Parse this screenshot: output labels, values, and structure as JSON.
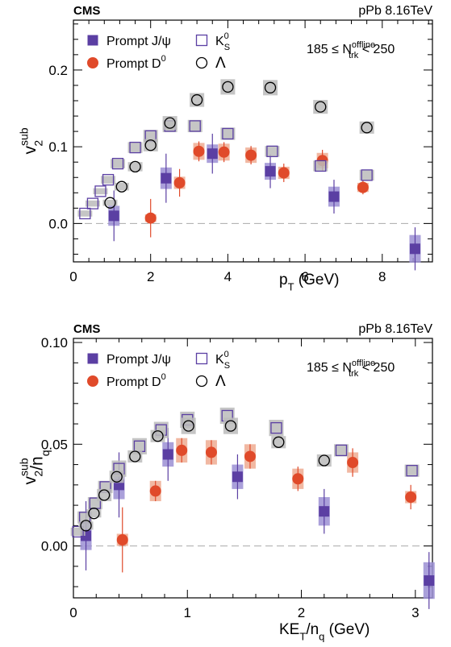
{
  "chart_data": [
    {
      "type": "scatter",
      "experiment": "CMS",
      "system": "pPb 8.16TeV",
      "multiplicity": {
        "lhs": "185 ≤ N",
        "sup": "offline",
        "sub": "trk",
        "rhs": " < 250"
      },
      "ylabel": {
        "base": "v",
        "sup": "sub",
        "sub": "2"
      },
      "xlabel": {
        "base": "p",
        "sub": "T",
        "rest": " (GeV)"
      },
      "xlim": [
        0,
        9.3
      ],
      "ylim": [
        -0.05,
        0.265
      ],
      "xticks": [
        0,
        2,
        4,
        6,
        8
      ],
      "xtick_labels": [
        "0",
        "2",
        "4",
        "6",
        "8"
      ],
      "yticks": [
        0.0,
        0.1,
        0.2
      ],
      "ytick_labels": [
        "0.0",
        "0.1",
        "0.2"
      ],
      "zero_line": true,
      "legend": {
        "placement": "top-left"
      },
      "series": [
        {
          "name": "Prompt J/ψ",
          "label": {
            "base": "Prompt J/ψ"
          },
          "marker": "square",
          "color": "#5b3fa3",
          "syst_color": "#9b8fd4",
          "x": [
            1.05,
            2.4,
            3.6,
            5.1,
            6.75,
            8.85
          ],
          "y": [
            0.01,
            0.059,
            0.091,
            0.068,
            0.035,
            -0.033
          ],
          "stat": [
            0.033,
            0.032,
            0.026,
            0.022,
            0.022,
            0.028
          ],
          "syst": [
            0.013,
            0.014,
            0.012,
            0.011,
            0.013,
            0.018
          ]
        },
        {
          "name": "Prompt D0",
          "label": {
            "base": "Prompt D",
            "sup": "0"
          },
          "marker": "circle",
          "color": "#e04a2a",
          "syst_color": "#eeab92",
          "x": [
            2.0,
            2.75,
            3.25,
            3.9,
            4.6,
            5.45,
            6.45,
            7.5
          ],
          "y": [
            0.007,
            0.053,
            0.094,
            0.093,
            0.089,
            0.066,
            0.082,
            0.047
          ],
          "stat": [
            0.025,
            0.018,
            0.013,
            0.013,
            0.012,
            0.012,
            0.014,
            0.009
          ],
          "syst": [
            0.005,
            0.008,
            0.011,
            0.011,
            0.01,
            0.008,
            0.01,
            0.006
          ]
        },
        {
          "name": "K0S",
          "label": {
            "base": "K",
            "sup": "0",
            "sub": "S"
          },
          "marker": "open-square",
          "color": "#5b3fa3",
          "syst_color": "#bbbbbb",
          "x": [
            0.3,
            0.5,
            0.7,
            0.9,
            1.15,
            1.6,
            2.0,
            2.5,
            3.15,
            4.0,
            5.15,
            6.4,
            7.6
          ],
          "y": [
            0.013,
            0.026,
            0.042,
            0.057,
            0.078,
            0.099,
            0.114,
            0.127,
            0.127,
            0.117,
            0.094,
            0.075,
            0.063
          ],
          "stat": [
            0,
            0,
            0,
            0,
            0,
            0,
            0,
            0,
            0,
            0,
            0,
            0,
            0
          ],
          "syst": [
            0.004,
            0.004,
            0.004,
            0.005,
            0.006,
            0.007,
            0.008,
            0.008,
            0.008,
            0.008,
            0.007,
            0.007,
            0.007
          ]
        },
        {
          "name": "Λ",
          "label": {
            "base": "Λ"
          },
          "marker": "open-circle",
          "color": "#000000",
          "syst_color": "#bbbbbb",
          "x": [
            0.95,
            1.25,
            1.6,
            2.0,
            2.5,
            3.2,
            4.0,
            5.1,
            6.4,
            7.6
          ],
          "y": [
            0.027,
            0.048,
            0.074,
            0.102,
            0.131,
            0.161,
            0.178,
            0.177,
            0.152,
            0.125
          ],
          "stat": [
            0,
            0,
            0,
            0,
            0,
            0,
            0,
            0,
            0,
            0
          ],
          "syst": [
            0.004,
            0.005,
            0.006,
            0.008,
            0.009,
            0.009,
            0.01,
            0.01,
            0.009,
            0.008
          ]
        }
      ]
    },
    {
      "type": "scatter",
      "experiment": "CMS",
      "system": "pPb 8.16TeV",
      "multiplicity": {
        "lhs": "185 ≤ N",
        "sup": "offline",
        "sub": "trk",
        "rhs": " < 250"
      },
      "ylabel": {
        "base": "v",
        "sup": "sub",
        "sub": "2",
        "rest": "/n",
        "rest_sub": "q"
      },
      "xlabel": {
        "base": "KE",
        "sub": "T",
        "rest": "/n",
        "rest_sub": "q",
        "tail": " (GeV)"
      },
      "xlim": [
        0,
        3.15
      ],
      "ylim": [
        -0.0255,
        0.102
      ],
      "xticks": [
        0,
        1,
        2,
        3
      ],
      "xtick_labels": [
        "0",
        "1",
        "2",
        "3"
      ],
      "yticks": [
        0.0,
        0.05,
        0.1
      ],
      "ytick_labels": [
        "0.00",
        "0.05",
        "0.10"
      ],
      "zero_line": true,
      "legend": {
        "placement": "top-left"
      },
      "series": [
        {
          "name": "Prompt J/ψ",
          "label": {
            "base": "Prompt J/ψ"
          },
          "marker": "square",
          "color": "#5b3fa3",
          "syst_color": "#9b8fd4",
          "x": [
            0.11,
            0.4,
            0.83,
            1.44,
            2.2,
            3.12
          ],
          "y": [
            0.005,
            0.03,
            0.045,
            0.034,
            0.017,
            -0.017
          ],
          "stat": [
            0.017,
            0.016,
            0.013,
            0.011,
            0.011,
            0.014
          ],
          "syst": [
            0.007,
            0.007,
            0.006,
            0.006,
            0.007,
            0.009
          ]
        },
        {
          "name": "Prompt D0",
          "label": {
            "base": "Prompt D",
            "sup": "0"
          },
          "marker": "circle",
          "color": "#e04a2a",
          "syst_color": "#eeab92",
          "x": [
            0.43,
            0.72,
            0.95,
            1.21,
            1.55,
            1.97,
            2.45,
            2.96
          ],
          "y": [
            0.003,
            0.027,
            0.047,
            0.046,
            0.044,
            0.033,
            0.041,
            0.024
          ],
          "stat": [
            0.016,
            0.005,
            0.006,
            0.006,
            0.006,
            0.006,
            0.007,
            0.006
          ],
          "syst": [
            0.003,
            0.005,
            0.006,
            0.006,
            0.006,
            0.005,
            0.005,
            0.003
          ]
        },
        {
          "name": "K0S",
          "label": {
            "base": "K",
            "sup": "0",
            "sub": "S"
          },
          "marker": "open-square",
          "color": "#5b3fa3",
          "syst_color": "#bbbbbb",
          "x": [
            0.04,
            0.1,
            0.19,
            0.28,
            0.4,
            0.58,
            0.77,
            1.0,
            1.35,
            1.78,
            2.35,
            2.97
          ],
          "y": [
            0.007,
            0.014,
            0.021,
            0.029,
            0.038,
            0.049,
            0.057,
            0.062,
            0.064,
            0.058,
            0.047,
            0.037
          ],
          "stat": [
            0,
            0,
            0,
            0,
            0,
            0,
            0,
            0,
            0,
            0,
            0,
            0
          ],
          "syst": [
            0.002,
            0.003,
            0.003,
            0.003,
            0.004,
            0.004,
            0.004,
            0.004,
            0.004,
            0.004,
            0.003,
            0.003
          ]
        },
        {
          "name": "Λ",
          "label": {
            "base": "Λ"
          },
          "marker": "open-circle",
          "color": "#000000",
          "syst_color": "#bbbbbb",
          "x": [
            0.11,
            0.18,
            0.27,
            0.38,
            0.54,
            0.74,
            1.01,
            1.38,
            1.8,
            2.2
          ],
          "y": [
            0.01,
            0.016,
            0.025,
            0.034,
            0.044,
            0.054,
            0.059,
            0.059,
            0.051,
            0.042
          ],
          "stat": [
            0,
            0,
            0,
            0,
            0,
            0,
            0,
            0,
            0,
            0
          ],
          "syst": [
            0.002,
            0.002,
            0.003,
            0.003,
            0.003,
            0.003,
            0.004,
            0.004,
            0.003,
            0.003
          ]
        }
      ]
    }
  ]
}
